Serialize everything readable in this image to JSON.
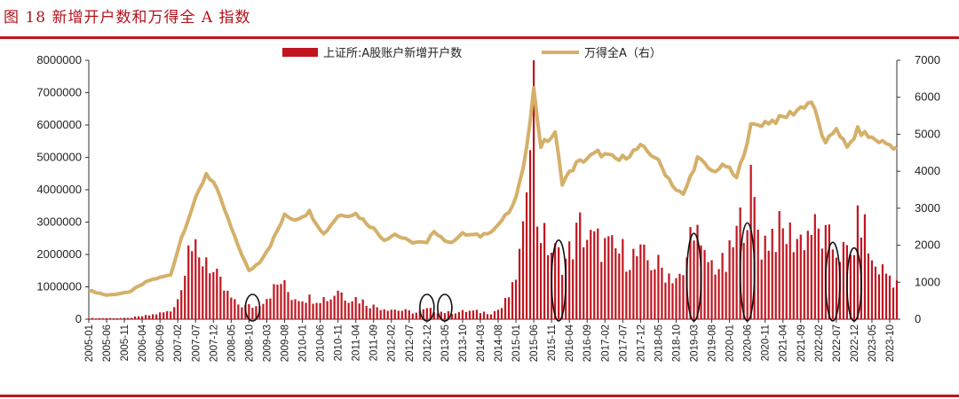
{
  "figure": {
    "title": "图 18  新增开户数和万得全 A 指数"
  },
  "chart_data": {
    "type": "bar+line",
    "legend": {
      "bar_label": "上证所:A股账户新增开户数",
      "line_label": "万得全A（右）",
      "placement": "top"
    },
    "colors": {
      "bar": "#c0151f",
      "line": "#d4b06a",
      "rule": "#c0151f",
      "ellipse": "#111111"
    },
    "y_left": {
      "min": 0,
      "max": 8000000,
      "ticks": [
        0,
        1000000,
        2000000,
        3000000,
        4000000,
        5000000,
        6000000,
        7000000,
        8000000
      ]
    },
    "y_right": {
      "min": 0,
      "max": 7000,
      "ticks": [
        0,
        1000,
        2000,
        3000,
        4000,
        5000,
        6000,
        7000
      ]
    },
    "x_start": "2005-01",
    "x_end": "2023-12",
    "x_tick_labels": [
      "2005-01",
      "2005-06",
      "2005-11",
      "2006-04",
      "2006-09",
      "2007-02",
      "2007-07",
      "2007-12",
      "2008-05",
      "2008-10",
      "2009-03",
      "2009-08",
      "2010-01",
      "2010-06",
      "2010-11",
      "2011-04",
      "2011-09",
      "2012-02",
      "2012-07",
      "2012-12",
      "2013-05",
      "2013-10",
      "2014-03",
      "2014-08",
      "2015-01",
      "2015-06",
      "2015-11",
      "2016-04",
      "2016-09",
      "2017-02",
      "2017-07",
      "2017-12",
      "2018-05",
      "2018-10",
      "2019-03",
      "2019-08",
      "2020-01",
      "2020-06",
      "2020-11",
      "2021-04",
      "2021-09",
      "2022-02",
      "2022-07",
      "2022-12",
      "2023-05",
      "2023-10"
    ],
    "bar_anchors": [
      [
        "2005-01",
        30000
      ],
      [
        "2005-12",
        35000
      ],
      [
        "2006-06",
        120000
      ],
      [
        "2006-12",
        250000
      ],
      [
        "2007-03",
        900000
      ],
      [
        "2007-05",
        2800000
      ],
      [
        "2007-06",
        2200000
      ],
      [
        "2007-08",
        1700000
      ],
      [
        "2007-10",
        2000000
      ],
      [
        "2007-12",
        1400000
      ],
      [
        "2008-03",
        900000
      ],
      [
        "2008-06",
        500000
      ],
      [
        "2008-09",
        400000
      ],
      [
        "2008-12",
        400000
      ],
      [
        "2009-03",
        700000
      ],
      [
        "2009-07",
        1150000
      ],
      [
        "2009-10",
        700000
      ],
      [
        "2010-03",
        650000
      ],
      [
        "2010-09",
        650000
      ],
      [
        "2010-11",
        950000
      ],
      [
        "2011-01",
        700000
      ],
      [
        "2011-04",
        650000
      ],
      [
        "2011-09",
        400000
      ],
      [
        "2012-03",
        300000
      ],
      [
        "2012-09",
        200000
      ],
      [
        "2012-12",
        300000
      ],
      [
        "2013-03",
        250000
      ],
      [
        "2013-06",
        200000
      ],
      [
        "2013-12",
        250000
      ],
      [
        "2014-06",
        200000
      ],
      [
        "2014-09",
        350000
      ],
      [
        "2014-12",
        900000
      ],
      [
        "2015-01",
        1400000
      ],
      [
        "2015-03",
        2400000
      ],
      [
        "2015-04",
        5000000
      ],
      [
        "2015-05",
        7200000
      ],
      [
        "2015-06",
        7100000
      ],
      [
        "2015-07",
        3200000
      ],
      [
        "2015-09",
        2400000
      ],
      [
        "2015-12",
        2000000
      ],
      [
        "2016-03",
        1800000
      ],
      [
        "2016-07",
        2800000
      ],
      [
        "2016-10",
        2400000
      ],
      [
        "2017-01",
        2300000
      ],
      [
        "2017-04",
        2100000
      ],
      [
        "2017-08",
        2000000
      ],
      [
        "2017-12",
        1900000
      ],
      [
        "2018-04",
        1700000
      ],
      [
        "2018-08",
        1400000
      ],
      [
        "2018-12",
        1200000
      ],
      [
        "2019-03",
        3300000
      ],
      [
        "2019-05",
        1900000
      ],
      [
        "2019-08",
        1700000
      ],
      [
        "2019-12",
        1600000
      ],
      [
        "2020-03",
        2600000
      ],
      [
        "2020-07",
        3900000
      ],
      [
        "2020-10",
        2300000
      ],
      [
        "2021-01",
        2700000
      ],
      [
        "2021-05",
        2600000
      ],
      [
        "2021-09",
        2500000
      ],
      [
        "2021-12",
        2800000
      ],
      [
        "2022-04",
        2400000
      ],
      [
        "2022-08",
        2100000
      ],
      [
        "2022-11",
        1900000
      ],
      [
        "2023-02",
        3200000
      ],
      [
        "2023-05",
        1700000
      ],
      [
        "2023-08",
        1500000
      ],
      [
        "2023-12",
        1200000
      ]
    ],
    "line_anchors": [
      [
        "2005-01",
        780
      ],
      [
        "2005-06",
        650
      ],
      [
        "2005-12",
        720
      ],
      [
        "2006-06",
        1050
      ],
      [
        "2006-12",
        1200
      ],
      [
        "2007-03",
        2200
      ],
      [
        "2007-06",
        3000
      ],
      [
        "2007-10",
        3950
      ],
      [
        "2007-12",
        3700
      ],
      [
        "2008-03",
        3000
      ],
      [
        "2008-06",
        2200
      ],
      [
        "2008-10",
        1300
      ],
      [
        "2009-01",
        1550
      ],
      [
        "2009-04",
        2000
      ],
      [
        "2009-08",
        2800
      ],
      [
        "2009-11",
        2700
      ],
      [
        "2010-03",
        2900
      ],
      [
        "2010-07",
        2300
      ],
      [
        "2010-11",
        2800
      ],
      [
        "2011-04",
        2850
      ],
      [
        "2011-09",
        2450
      ],
      [
        "2011-12",
        2150
      ],
      [
        "2012-03",
        2300
      ],
      [
        "2012-07",
        2100
      ],
      [
        "2012-12",
        2050
      ],
      [
        "2013-02",
        2400
      ],
      [
        "2013-06",
        2050
      ],
      [
        "2013-10",
        2300
      ],
      [
        "2014-03",
        2250
      ],
      [
        "2014-07",
        2450
      ],
      [
        "2014-12",
        3000
      ],
      [
        "2015-03",
        4000
      ],
      [
        "2015-06",
        6200
      ],
      [
        "2015-08",
        4700
      ],
      [
        "2015-12",
        5000
      ],
      [
        "2016-02",
        3700
      ],
      [
        "2016-06",
        4200
      ],
      [
        "2016-12",
        4500
      ],
      [
        "2017-06",
        4300
      ],
      [
        "2017-12",
        4650
      ],
      [
        "2018-04",
        4400
      ],
      [
        "2018-10",
        3500
      ],
      [
        "2018-12",
        3350
      ],
      [
        "2019-04",
        4350
      ],
      [
        "2019-08",
        4000
      ],
      [
        "2019-12",
        4150
      ],
      [
        "2020-03",
        3800
      ],
      [
        "2020-07",
        5200
      ],
      [
        "2020-12",
        5350
      ],
      [
        "2021-03",
        5400
      ],
      [
        "2021-07",
        5600
      ],
      [
        "2021-12",
        5900
      ],
      [
        "2022-04",
        4700
      ],
      [
        "2022-07",
        5200
      ],
      [
        "2022-10",
        4600
      ],
      [
        "2023-01",
        5100
      ],
      [
        "2023-06",
        4850
      ],
      [
        "2023-12",
        4650
      ]
    ],
    "annotations": [
      {
        "type": "ellipse",
        "date": "2008-11"
      },
      {
        "type": "ellipse",
        "date": "2012-12"
      },
      {
        "type": "ellipse",
        "date": "2013-05"
      },
      {
        "type": "ellipse",
        "date": "2016-01"
      },
      {
        "type": "ellipse",
        "date": "2019-03"
      },
      {
        "type": "ellipse",
        "date": "2020-06"
      },
      {
        "type": "ellipse",
        "date": "2022-06"
      },
      {
        "type": "ellipse",
        "date": "2022-12"
      }
    ]
  }
}
